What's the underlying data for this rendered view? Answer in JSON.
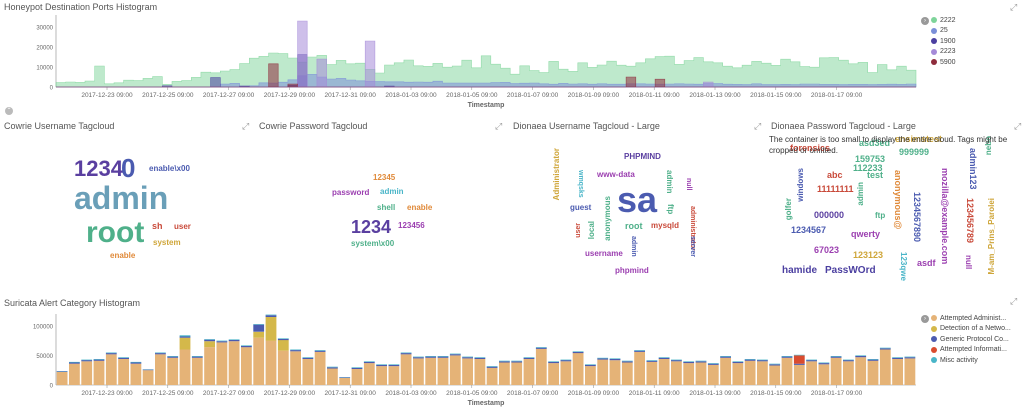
{
  "ports_panel": {
    "title": "Honeypot Destination Ports Histogram",
    "xlabel": "Timestamp",
    "legend_toggle_icon": "chevron-right-icon",
    "expand_icon": "expand-icon",
    "legend": [
      {
        "label": "2222",
        "color": "#7ed49a"
      },
      {
        "label": "25",
        "color": "#7b8fd8"
      },
      {
        "label": "1900",
        "color": "#4b3fa0"
      },
      {
        "label": "2223",
        "color": "#a58ad8"
      },
      {
        "label": "5900",
        "color": "#8e2c3c"
      }
    ],
    "ytick_labels": [
      "30000",
      "20000",
      "10000",
      "0"
    ],
    "xtick_labels": [
      "2017-12-23 09:00",
      "2017-12-25 09:00",
      "2017-12-27 09:00",
      "2017-12-29 09:00",
      "2017-12-31 09:00",
      "2018-01-03 09:00",
      "2018-01-05 09:00",
      "2018-01-07 09:00",
      "2018-01-09 09:00",
      "2018-01-11 09:00",
      "2018-01-13 09:00",
      "2018-01-15 09:00",
      "2018-01-17 09:00"
    ]
  },
  "tagclouds": {
    "collapse_icon": "circle-toggle-icon",
    "cowrie_user": {
      "title": "Cowrie Username Tagcloud",
      "words": [
        "1234",
        "0",
        "enable\\x00",
        "admin",
        "root",
        "sh",
        "user",
        "system",
        "enable"
      ]
    },
    "cowrie_pass": {
      "title": "Cowrie Password Tagcloud",
      "words": [
        "12345",
        "password",
        "admin",
        "shell",
        "enable",
        "1234",
        "123456",
        "system\\x00"
      ]
    },
    "dionaea_user": {
      "title": "Dionaea Username Tagcloud - Large",
      "words": [
        "PHPMIND",
        "Administrator",
        "www-data",
        "wmqsks",
        "null",
        "admin",
        "sa",
        "guest",
        "anonymous",
        "ftp",
        "administrator",
        "user",
        "local",
        "root",
        "mysqld",
        "admin",
        "server",
        "username",
        "phpmind"
      ]
    },
    "dionaea_pass": {
      "title": "Dionaea Password Tagcloud - Large",
      "warning": "The container is too small to display the entire cloud. Tags might be cropped or omitted.",
      "words": [
        "forensics",
        "asd3ed",
        "ensimstest",
        "999999",
        "159753",
        "112233",
        "admin123",
        "abc",
        "test",
        "windows",
        "11111111",
        "anonymous@",
        "mozilla@example.com",
        "admin",
        "golfer",
        "123456789",
        "nebo",
        "1234567890",
        "000000",
        "ftp",
        "1234567",
        "qwerty",
        "67023",
        "123123",
        "null",
        "M-am_Prins_Parolei",
        "hamide",
        "PassWOrd",
        "asdf",
        "123qwe"
      ]
    }
  },
  "suricata_panel": {
    "title": "Suricata Alert Category Histogram",
    "xlabel": "Timestamp",
    "legend_toggle_icon": "chevron-right-icon",
    "expand_icon": "expand-icon",
    "legend": [
      {
        "label": "Attempted Administ...",
        "color": "#e5b377"
      },
      {
        "label": "Detection of a Netwo...",
        "color": "#d4b84a"
      },
      {
        "label": "Generic Protocol Co...",
        "color": "#4b5bb0"
      },
      {
        "label": "Attempted Informati...",
        "color": "#d94c2f"
      },
      {
        "label": "Misc activity",
        "color": "#49b5c8"
      }
    ],
    "ytick_labels": [
      "100000",
      "50000",
      "0"
    ],
    "xtick_labels": [
      "2017-12-23 09:00",
      "2017-12-25 09:00",
      "2017-12-27 09:00",
      "2017-12-29 09:00",
      "2017-12-31 09:00",
      "2018-01-03 09:00",
      "2018-01-05 09:00",
      "2018-01-07 09:00",
      "2018-01-09 09:00",
      "2018-01-11 09:00",
      "2018-01-13 09:00",
      "2018-01-15 09:00",
      "2018-01-17 09:00"
    ]
  },
  "chart_data": [
    {
      "type": "area",
      "title": "Honeypot Destination Ports Histogram",
      "xlabel": "Timestamp",
      "ylabel": "",
      "ylim": [
        0,
        36000
      ],
      "series": [
        {
          "name": "2222",
          "values": [
            2200,
            2500,
            2300,
            3000,
            10500,
            1600,
            2100,
            3400,
            3200,
            4300,
            5200,
            1300,
            2800,
            3200,
            4800,
            7400,
            7100,
            8000,
            8700,
            11700,
            14400,
            15300,
            17000,
            16700,
            14500,
            12400,
            15000,
            15800,
            11200,
            13300,
            11600,
            11900,
            8800,
            7000,
            11000,
            12100,
            13500,
            10600,
            10300,
            11800,
            9900,
            10500,
            13400,
            9600,
            15600,
            11400,
            9400,
            6400,
            10600,
            8200,
            7200,
            12800,
            8900,
            7800,
            12100,
            9800,
            11000,
            12900,
            10900,
            10400,
            12100,
            14100,
            15200,
            15400,
            11300,
            13200,
            14700,
            12600,
            12100,
            10400,
            9600,
            10900,
            12800,
            11900,
            10800,
            13900,
            12600,
            10200,
            9900,
            14600,
            14700,
            13400,
            11600,
            12300,
            7200,
            11200,
            8600,
            10400,
            8400
          ]
        },
        {
          "name": "25",
          "values": [
            0,
            0,
            0,
            0,
            0,
            0,
            0,
            0,
            0,
            0,
            0,
            0,
            0,
            0,
            0,
            0,
            0,
            1500,
            1800,
            500,
            600,
            2100,
            2000,
            2400,
            3600,
            5600,
            6300,
            5000,
            4000,
            4300,
            3500,
            3100,
            2800,
            2700,
            2600,
            2600,
            2400,
            2500,
            2400,
            2900,
            2000,
            2000,
            2000,
            2000,
            2000,
            2200,
            2300,
            1700,
            1900,
            2000,
            1600,
            1400,
            1800,
            1500,
            1600,
            1400,
            1600,
            1400,
            1400,
            1600,
            1600,
            1500,
            1400,
            1500,
            1600,
            1500,
            1400,
            1700,
            1700,
            1400,
            1300,
            1200,
            1600,
            1200,
            1200,
            1300,
            1200,
            1500,
            1500,
            1300,
            1300,
            1200,
            1300,
            1300,
            1200,
            1300,
            1400,
            1300,
            1500
          ]
        },
        {
          "name": "1900",
          "values": [
            0,
            0,
            0,
            0,
            0,
            0,
            0,
            0,
            0,
            0,
            0,
            600,
            0,
            0,
            0,
            0,
            4700,
            0,
            0,
            500,
            0,
            0,
            0,
            0,
            800,
            16200,
            0,
            0,
            0,
            0,
            0,
            0,
            0,
            0,
            500,
            0,
            0,
            0,
            0,
            0,
            0,
            0,
            0,
            0,
            0,
            0,
            0,
            0,
            0,
            0,
            0,
            0,
            0,
            0,
            0,
            0,
            0,
            0,
            0,
            0,
            0,
            0,
            0,
            0,
            0,
            0,
            0,
            0,
            0,
            0,
            0,
            0,
            0,
            0,
            0,
            0,
            0,
            0,
            0,
            0,
            0,
            0,
            0,
            0,
            0,
            0,
            0,
            0,
            0
          ]
        },
        {
          "name": "2223",
          "values": [
            0,
            0,
            0,
            0,
            0,
            0,
            0,
            0,
            0,
            0,
            0,
            0,
            0,
            0,
            0,
            0,
            0,
            0,
            0,
            0,
            0,
            0,
            0,
            0,
            0,
            33000,
            0,
            14000,
            0,
            0,
            0,
            0,
            23000,
            0,
            0,
            0,
            0,
            0,
            0,
            0,
            0,
            0,
            0,
            0,
            0,
            0,
            0,
            0,
            0,
            0,
            0,
            0,
            0,
            0,
            0,
            0,
            0,
            0,
            0,
            0,
            0,
            0,
            0,
            0,
            0,
            0,
            0,
            2500,
            0,
            0,
            0,
            0,
            0,
            0,
            0,
            0,
            0,
            0,
            0,
            0,
            0,
            0,
            0,
            0,
            0,
            0,
            0,
            0,
            0
          ]
        },
        {
          "name": "5900",
          "values": [
            0,
            0,
            0,
            0,
            0,
            0,
            0,
            0,
            0,
            0,
            0,
            0,
            0,
            0,
            0,
            0,
            0,
            0,
            0,
            0,
            0,
            0,
            11600,
            0,
            1500,
            0,
            0,
            0,
            0,
            0,
            0,
            0,
            0,
            0,
            0,
            0,
            0,
            0,
            0,
            0,
            0,
            0,
            0,
            0,
            0,
            0,
            0,
            0,
            0,
            0,
            0,
            0,
            0,
            0,
            0,
            0,
            0,
            0,
            0,
            5000,
            0,
            0,
            3900,
            0,
            0,
            0,
            0,
            0,
            0,
            0,
            0,
            0,
            0,
            0,
            0,
            0,
            0,
            0,
            0,
            0,
            0,
            0,
            0,
            0,
            0,
            0,
            0,
            0,
            0
          ]
        }
      ]
    },
    {
      "type": "bar",
      "title": "Suricata Alert Category Histogram",
      "xlabel": "Timestamp",
      "ylabel": "",
      "ylim": [
        0,
        120000
      ],
      "stacked": true,
      "series": [
        {
          "name": "Attempted Administ...",
          "values": [
            22000,
            36000,
            40000,
            41000,
            52000,
            44000,
            36000,
            25000,
            52000,
            46000,
            60000,
            46000,
            64000,
            72000,
            74000,
            64000,
            80000,
            75000,
            58000,
            57000,
            44000,
            56000,
            28000,
            12000,
            27000,
            37000,
            32000,
            32000,
            52000,
            45000,
            46000,
            46000,
            50000,
            45000,
            44000,
            29000,
            38000,
            38000,
            44000,
            61000,
            37000,
            40000,
            54000,
            32000,
            43000,
            42000,
            38000,
            56000,
            39000,
            44000,
            40000,
            37000,
            38000,
            34000,
            46000,
            37000,
            41000,
            40000,
            33000,
            46000,
            34000,
            40000,
            35000,
            46000,
            40000,
            47000,
            41000,
            60000,
            44000,
            45000
          ]
        },
        {
          "name": "Detection of a Netwo...",
          "values": [
            0,
            0,
            0,
            0,
            0,
            0,
            0,
            0,
            0,
            0,
            20000,
            0,
            10000,
            0,
            0,
            0,
            10000,
            40000,
            18000,
            0,
            0,
            0,
            0,
            0,
            0,
            0,
            0,
            0,
            0,
            0,
            0,
            0,
            0,
            0,
            0,
            0,
            0,
            0,
            0,
            0,
            0,
            0,
            0,
            0,
            0,
            0,
            0,
            0,
            0,
            0,
            0,
            0,
            0,
            0,
            0,
            0,
            0,
            0,
            0,
            0,
            0,
            0,
            0,
            0,
            0,
            0,
            0,
            0,
            0,
            0
          ]
        },
        {
          "name": "Generic Protocol Co...",
          "values": [
            1000,
            2000,
            2000,
            2000,
            2000,
            2000,
            2000,
            1000,
            2000,
            2000,
            2000,
            2000,
            2500,
            2000,
            2000,
            2000,
            12000,
            3000,
            2000,
            2000,
            2000,
            2000,
            2000,
            1000,
            2000,
            2000,
            2000,
            2000,
            2000,
            2000,
            2000,
            2000,
            2000,
            2000,
            2000,
            2000,
            2000,
            2000,
            2000,
            2000,
            2000,
            2000,
            2000,
            2000,
            2000,
            2000,
            2000,
            2000,
            2000,
            2000,
            2000,
            2000,
            2000,
            2000,
            2000,
            2000,
            2000,
            2000,
            2000,
            2000,
            2000,
            2000,
            2000,
            2000,
            2000,
            2000,
            2000,
            2000,
            2000,
            2000
          ]
        },
        {
          "name": "Attempted Informati...",
          "values": [
            0,
            0,
            0,
            0,
            0,
            0,
            0,
            0,
            0,
            0,
            0,
            0,
            0,
            0,
            0,
            0,
            0,
            0,
            0,
            0,
            0,
            0,
            0,
            0,
            0,
            0,
            0,
            0,
            0,
            0,
            0,
            0,
            0,
            0,
            0,
            0,
            0,
            0,
            0,
            0,
            0,
            0,
            0,
            0,
            0,
            0,
            0,
            0,
            0,
            0,
            0,
            0,
            0,
            0,
            0,
            0,
            0,
            0,
            0,
            0,
            14000,
            0,
            0,
            0,
            0,
            0,
            0,
            0,
            0,
            0
          ]
        },
        {
          "name": "Misc activity",
          "values": [
            500,
            1000,
            1000,
            1000,
            1000,
            1000,
            1000,
            500,
            1000,
            1000,
            2000,
            1000,
            1000,
            1000,
            1000,
            1000,
            1000,
            1000,
            1000,
            1000,
            1000,
            1000,
            1000,
            500,
            1000,
            1000,
            1000,
            1000,
            1000,
            1000,
            1000,
            1000,
            1000,
            1000,
            1000,
            1000,
            1000,
            1000,
            1000,
            1000,
            1000,
            1000,
            1000,
            1000,
            1000,
            1000,
            1000,
            1000,
            1000,
            1000,
            1000,
            1000,
            1000,
            1000,
            1000,
            1000,
            1000,
            1000,
            1000,
            1000,
            1000,
            1000,
            1000,
            1000,
            1000,
            1000,
            1000,
            1000,
            1000,
            1000
          ]
        }
      ]
    }
  ]
}
